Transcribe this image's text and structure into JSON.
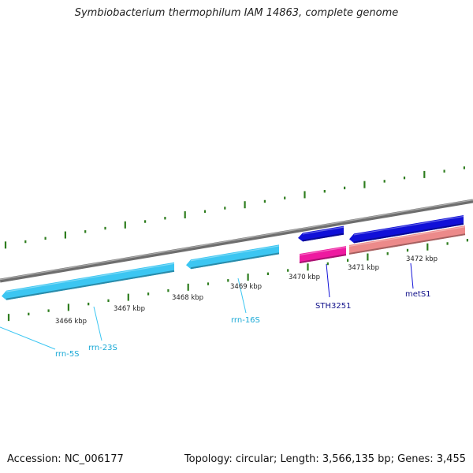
{
  "title": "Symbiobacterium thermophilum IAM 14863, complete genome",
  "footer": {
    "accession": "Accession: NC_006177",
    "topology": "Topology: circular; Length: 3,566,135 bp; Genes: 3,455"
  },
  "colors": {
    "backbone": "#808080",
    "tick": "#2e7d1e",
    "rrna": "#3cc6f2",
    "cds_forward": "#1010d8",
    "cds_reverse_magenta": "#ee1aa0",
    "cds_reverse_pink": "#ec8a8a",
    "label_rrna": "#19a9d6",
    "label_cds": "#10108a",
    "scale_text": "#222222"
  },
  "scale_labels": [
    "3466 kbp",
    "3467 kbp",
    "3468 kbp",
    "3469 kbp",
    "3470 kbp",
    "3471 kbp",
    "3472 kbp"
  ],
  "features": [
    {
      "name": "rrn-5S",
      "type": "rRNA",
      "strand": "-"
    },
    {
      "name": "rrn-23S",
      "type": "rRNA",
      "strand": "-"
    },
    {
      "name": "rrn-16S",
      "type": "rRNA",
      "strand": "-"
    },
    {
      "name": "STH3251",
      "type": "CDS",
      "strand": "-"
    },
    {
      "name": "metS1",
      "type": "CDS",
      "strand": "-"
    }
  ]
}
